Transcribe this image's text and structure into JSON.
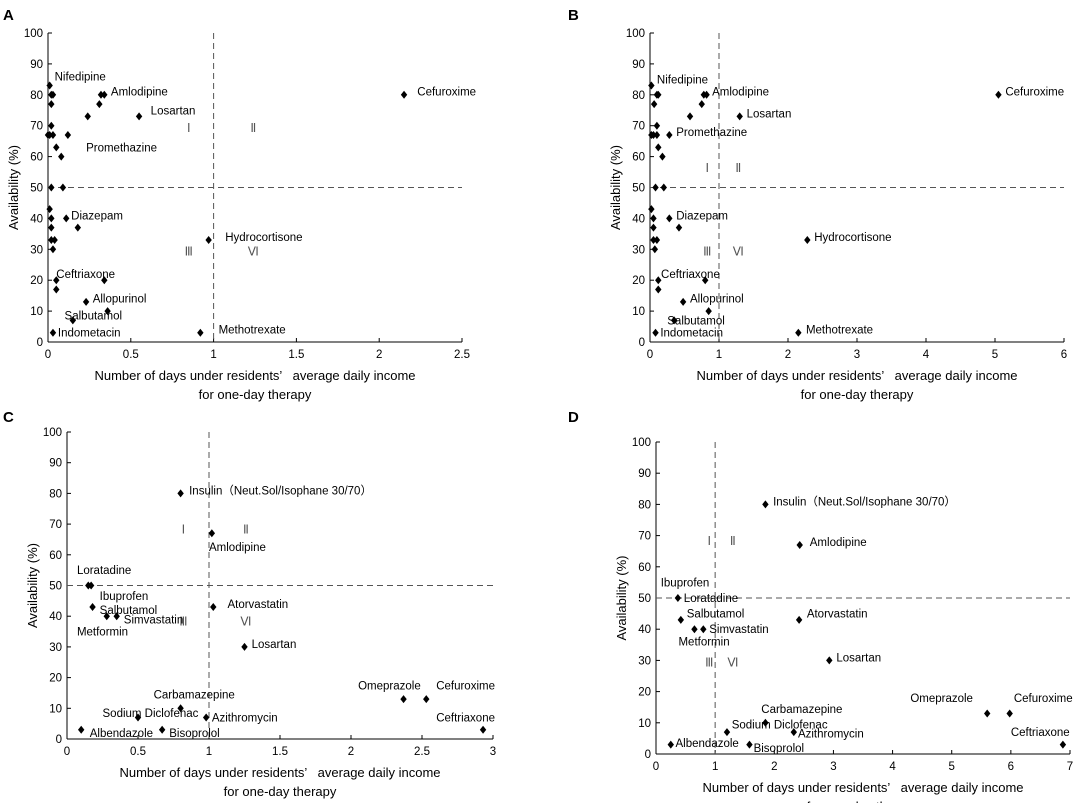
{
  "chart_data": [
    {
      "panel": "A",
      "type": "scatter",
      "xlabel": [
        "Number of days under residents’   average daily income",
        "for one-day therapy"
      ],
      "ylabel": "Availability (%)",
      "xlim": [
        0,
        2.5
      ],
      "ylim": [
        0,
        100
      ],
      "xticks": [
        0,
        0.5,
        1,
        1.5,
        2,
        2.5
      ],
      "xtick_labels": [
        "0",
        "0.5",
        "1",
        "1.5",
        "2",
        "2.5"
      ],
      "yticks": [
        0,
        10,
        20,
        30,
        40,
        50,
        60,
        70,
        80,
        90,
        100
      ],
      "threshold_x": 1,
      "threshold_y": 50,
      "quadrant_labels": [
        {
          "text": "Ⅰ",
          "x": 0.85,
          "y": 68
        },
        {
          "text": "Ⅱ",
          "x": 1.24,
          "y": 68
        },
        {
          "text": "Ⅲ",
          "x": 0.85,
          "y": 28
        },
        {
          "text": "Ⅵ",
          "x": 1.24,
          "y": 28
        }
      ],
      "points": [
        {
          "x": 0.01,
          "y": 83
        },
        {
          "x": 0.02,
          "y": 80
        },
        {
          "x": 0.03,
          "y": 80
        },
        {
          "x": 0.02,
          "y": 77
        },
        {
          "x": 0.02,
          "y": 70
        },
        {
          "x": 0.0,
          "y": 67
        },
        {
          "x": 0.01,
          "y": 67
        },
        {
          "x": 0.03,
          "y": 67
        },
        {
          "x": 0.12,
          "y": 67
        },
        {
          "x": 0.05,
          "y": 63
        },
        {
          "x": 0.08,
          "y": 60
        },
        {
          "x": 0.32,
          "y": 80
        },
        {
          "x": 0.34,
          "y": 80
        },
        {
          "x": 0.31,
          "y": 77
        },
        {
          "x": 0.24,
          "y": 73
        },
        {
          "x": 0.55,
          "y": 73
        },
        {
          "x": 2.15,
          "y": 80
        },
        {
          "x": 0.02,
          "y": 50
        },
        {
          "x": 0.09,
          "y": 50
        },
        {
          "x": 0.01,
          "y": 43
        },
        {
          "x": 0.02,
          "y": 40
        },
        {
          "x": 0.11,
          "y": 40
        },
        {
          "x": 0.18,
          "y": 37
        },
        {
          "x": 0.02,
          "y": 37
        },
        {
          "x": 0.02,
          "y": 33
        },
        {
          "x": 0.04,
          "y": 33
        },
        {
          "x": 0.03,
          "y": 30
        },
        {
          "x": 0.97,
          "y": 33
        },
        {
          "x": 0.05,
          "y": 20
        },
        {
          "x": 0.05,
          "y": 17
        },
        {
          "x": 0.34,
          "y": 20
        },
        {
          "x": 0.23,
          "y": 13
        },
        {
          "x": 0.36,
          "y": 10
        },
        {
          "x": 0.15,
          "y": 7
        },
        {
          "x": 0.03,
          "y": 3
        },
        {
          "x": 0.92,
          "y": 3
        }
      ],
      "labels": [
        {
          "text": "Nifedipine",
          "x": 0.04,
          "y": 86
        },
        {
          "text": "Amlodipine",
          "x": 0.38,
          "y": 81
        },
        {
          "text": "Cefuroxime",
          "x": 2.23,
          "y": 81
        },
        {
          "text": "Losartan",
          "x": 0.62,
          "y": 75
        },
        {
          "text": "Promethazine",
          "x": 0.23,
          "y": 63
        },
        {
          "text": "Diazepam",
          "x": 0.14,
          "y": 41
        },
        {
          "text": "Hydrocortisone",
          "x": 1.07,
          "y": 34
        },
        {
          "text": "Ceftriaxone",
          "x": 0.05,
          "y": 22
        },
        {
          "text": "Allopurinol",
          "x": 0.27,
          "y": 14
        },
        {
          "text": "Salbutamol",
          "x": 0.1,
          "y": 8.5
        },
        {
          "text": "Methotrexate",
          "x": 1.03,
          "y": 4
        },
        {
          "text": "Indometacin",
          "x": 0.06,
          "y": 3
        }
      ]
    },
    {
      "panel": "B",
      "type": "scatter",
      "xlabel": [
        "Number of days under residents’   average daily income",
        "for one-day therapy"
      ],
      "ylabel": "Availability (%)",
      "xlim": [
        0,
        6
      ],
      "ylim": [
        0,
        100
      ],
      "xticks": [
        0,
        1,
        2,
        3,
        4,
        5,
        6
      ],
      "xtick_labels": [
        "0",
        "1",
        "2",
        "3",
        "4",
        "5",
        "6"
      ],
      "yticks": [
        0,
        10,
        20,
        30,
        40,
        50,
        60,
        70,
        80,
        90,
        100
      ],
      "threshold_x": 1,
      "threshold_y": 50,
      "quadrant_labels": [
        {
          "text": "Ⅰ",
          "x": 0.83,
          "y": 55
        },
        {
          "text": "Ⅱ",
          "x": 1.28,
          "y": 55
        },
        {
          "text": "Ⅲ",
          "x": 0.83,
          "y": 28
        },
        {
          "text": "Ⅵ",
          "x": 1.28,
          "y": 28
        }
      ],
      "points": [
        {
          "x": 0.02,
          "y": 83
        },
        {
          "x": 0.1,
          "y": 80
        },
        {
          "x": 0.12,
          "y": 80
        },
        {
          "x": 0.06,
          "y": 77
        },
        {
          "x": 0.1,
          "y": 70
        },
        {
          "x": 0.02,
          "y": 67
        },
        {
          "x": 0.05,
          "y": 67
        },
        {
          "x": 0.1,
          "y": 67
        },
        {
          "x": 0.28,
          "y": 67
        },
        {
          "x": 0.12,
          "y": 63
        },
        {
          "x": 0.18,
          "y": 60
        },
        {
          "x": 0.78,
          "y": 80
        },
        {
          "x": 0.82,
          "y": 80
        },
        {
          "x": 0.75,
          "y": 77
        },
        {
          "x": 0.58,
          "y": 73
        },
        {
          "x": 1.3,
          "y": 73
        },
        {
          "x": 5.05,
          "y": 80
        },
        {
          "x": 0.08,
          "y": 50
        },
        {
          "x": 0.2,
          "y": 50
        },
        {
          "x": 0.02,
          "y": 43
        },
        {
          "x": 0.05,
          "y": 40
        },
        {
          "x": 0.28,
          "y": 40
        },
        {
          "x": 0.42,
          "y": 37
        },
        {
          "x": 0.05,
          "y": 37
        },
        {
          "x": 0.05,
          "y": 33
        },
        {
          "x": 0.1,
          "y": 33
        },
        {
          "x": 0.07,
          "y": 30
        },
        {
          "x": 2.28,
          "y": 33
        },
        {
          "x": 0.12,
          "y": 20
        },
        {
          "x": 0.12,
          "y": 17
        },
        {
          "x": 0.8,
          "y": 20
        },
        {
          "x": 0.48,
          "y": 13
        },
        {
          "x": 0.85,
          "y": 10
        },
        {
          "x": 0.35,
          "y": 7
        },
        {
          "x": 0.08,
          "y": 3
        },
        {
          "x": 2.15,
          "y": 3
        }
      ],
      "labels": [
        {
          "text": "Nifedipine",
          "x": 0.1,
          "y": 85
        },
        {
          "text": "Amlodipine",
          "x": 0.9,
          "y": 81
        },
        {
          "text": "Cefuroxime",
          "x": 5.15,
          "y": 81
        },
        {
          "text": "Losartan",
          "x": 1.4,
          "y": 74
        },
        {
          "text": "Promethazine",
          "x": 0.38,
          "y": 68
        },
        {
          "text": "Diazepam",
          "x": 0.38,
          "y": 41
        },
        {
          "text": "Hydrocortisone",
          "x": 2.38,
          "y": 34
        },
        {
          "text": "Ceftriaxone",
          "x": 0.16,
          "y": 22
        },
        {
          "text": "Allopurinol",
          "x": 0.58,
          "y": 14
        },
        {
          "text": "Salbutamol",
          "x": 0.25,
          "y": 7
        },
        {
          "text": "Methotrexate",
          "x": 2.26,
          "y": 4
        },
        {
          "text": "Indometacin",
          "x": 0.15,
          "y": 3
        }
      ]
    },
    {
      "panel": "C",
      "type": "scatter",
      "xlabel": [
        "Number of days under residents’   average daily income",
        "for one-day therapy"
      ],
      "ylabel": "Availability (%)",
      "xlim": [
        0,
        3
      ],
      "ylim": [
        0,
        100
      ],
      "xticks": [
        0,
        0.5,
        1,
        1.5,
        2,
        2.5,
        3
      ],
      "xtick_labels": [
        "0",
        "0.5",
        "1",
        "1.5",
        "2",
        "2.5",
        "3"
      ],
      "yticks": [
        0,
        10,
        20,
        30,
        40,
        50,
        60,
        70,
        80,
        90,
        100
      ],
      "threshold_x": 1,
      "threshold_y": 50,
      "quadrant_labels": [
        {
          "text": "Ⅰ",
          "x": 0.82,
          "y": 67
        },
        {
          "text": "Ⅱ",
          "x": 1.26,
          "y": 67
        },
        {
          "text": "Ⅲ",
          "x": 0.82,
          "y": 37
        },
        {
          "text": "Ⅵ",
          "x": 1.26,
          "y": 37
        }
      ],
      "points": [
        {
          "x": 0.8,
          "y": 80
        },
        {
          "x": 1.02,
          "y": 67
        },
        {
          "x": 0.15,
          "y": 50
        },
        {
          "x": 0.17,
          "y": 50
        },
        {
          "x": 0.18,
          "y": 43
        },
        {
          "x": 1.03,
          "y": 43
        },
        {
          "x": 0.28,
          "y": 40
        },
        {
          "x": 0.35,
          "y": 40
        },
        {
          "x": 1.25,
          "y": 30
        },
        {
          "x": 2.37,
          "y": 13
        },
        {
          "x": 2.53,
          "y": 13
        },
        {
          "x": 0.8,
          "y": 10
        },
        {
          "x": 0.5,
          "y": 7
        },
        {
          "x": 0.98,
          "y": 7
        },
        {
          "x": 0.1,
          "y": 3
        },
        {
          "x": 0.67,
          "y": 3
        },
        {
          "x": 2.93,
          "y": 3
        }
      ],
      "labels": [
        {
          "text": "Insulin（Neut.Sol/Isophane 30/70）",
          "x": 0.86,
          "y": 81
        },
        {
          "text": "Amlodipine",
          "x": 1.0,
          "y": 62.5
        },
        {
          "text": "Loratadine",
          "x": 0.07,
          "y": 55
        },
        {
          "text": "Ibuprofen",
          "x": 0.23,
          "y": 46.5
        },
        {
          "text": "Salbutamol",
          "x": 0.23,
          "y": 42
        },
        {
          "text": "Simvastatin",
          "x": 0.4,
          "y": 39
        },
        {
          "text": "Metformin",
          "x": 0.07,
          "y": 35
        },
        {
          "text": "Atorvastatin",
          "x": 1.13,
          "y": 44
        },
        {
          "text": "Losartan",
          "x": 1.3,
          "y": 31
        },
        {
          "text": "Omeprazole",
          "x": 2.05,
          "y": 17.5
        },
        {
          "text": "Cefuroxime",
          "x": 2.6,
          "y": 17.5
        },
        {
          "text": "Carbamazepine",
          "x": 0.61,
          "y": 14.5
        },
        {
          "text": "Sodium Diclofenac",
          "x": 0.25,
          "y": 8.5
        },
        {
          "text": "Azithromycin",
          "x": 1.02,
          "y": 7
        },
        {
          "text": "Albendazole",
          "x": 0.16,
          "y": 2
        },
        {
          "text": "Bisoprolol",
          "x": 0.72,
          "y": 2
        },
        {
          "text": "Ceftriaxone",
          "x": 2.6,
          "y": 7
        }
      ]
    },
    {
      "panel": "D",
      "type": "scatter",
      "xlabel": [
        "Number of days under residents’   average daily income",
        "for one-day therapy"
      ],
      "ylabel": "Availability (%)",
      "xlim": [
        0,
        7
      ],
      "ylim": [
        0,
        100
      ],
      "xticks": [
        0,
        1,
        2,
        3,
        4,
        5,
        6,
        7
      ],
      "xtick_labels": [
        "0",
        "1",
        "2",
        "3",
        "4",
        "5",
        "6",
        "7"
      ],
      "yticks": [
        0,
        10,
        20,
        30,
        40,
        50,
        60,
        70,
        80,
        90,
        100
      ],
      "threshold_x": 1,
      "threshold_y": 50,
      "quadrant_labels": [
        {
          "text": "Ⅰ",
          "x": 0.9,
          "y": 67
        },
        {
          "text": "Ⅱ",
          "x": 1.3,
          "y": 67
        },
        {
          "text": "Ⅲ",
          "x": 0.9,
          "y": 28
        },
        {
          "text": "Ⅵ",
          "x": 1.3,
          "y": 28
        }
      ],
      "points": [
        {
          "x": 1.85,
          "y": 80
        },
        {
          "x": 2.43,
          "y": 67
        },
        {
          "x": 0.37,
          "y": 50
        },
        {
          "x": 0.42,
          "y": 43
        },
        {
          "x": 2.42,
          "y": 43
        },
        {
          "x": 0.65,
          "y": 40
        },
        {
          "x": 0.8,
          "y": 40
        },
        {
          "x": 2.93,
          "y": 30
        },
        {
          "x": 5.6,
          "y": 13
        },
        {
          "x": 5.98,
          "y": 13
        },
        {
          "x": 1.85,
          "y": 10
        },
        {
          "x": 1.2,
          "y": 7
        },
        {
          "x": 2.33,
          "y": 7
        },
        {
          "x": 0.25,
          "y": 3
        },
        {
          "x": 1.58,
          "y": 3
        },
        {
          "x": 6.88,
          "y": 3
        }
      ],
      "labels": [
        {
          "text": "Insulin（Neut.Sol/Isophane 30/70）",
          "x": 1.98,
          "y": 81
        },
        {
          "text": "Amlodipine",
          "x": 2.6,
          "y": 68
        },
        {
          "text": "Ibuprofen",
          "x": 0.08,
          "y": 55
        },
        {
          "text": "Loratadine",
          "x": 0.47,
          "y": 50
        },
        {
          "text": "Salbutamol",
          "x": 0.52,
          "y": 45
        },
        {
          "text": "Simvastatin",
          "x": 0.9,
          "y": 40
        },
        {
          "text": "Metformin",
          "x": 0.38,
          "y": 36
        },
        {
          "text": "Atorvastatin",
          "x": 2.55,
          "y": 45
        },
        {
          "text": "Losartan",
          "x": 3.05,
          "y": 31
        },
        {
          "text": "Omeprazole",
          "x": 4.3,
          "y": 18
        },
        {
          "text": "Cefuroxime",
          "x": 6.05,
          "y": 18
        },
        {
          "text": "Carbamazepine",
          "x": 1.78,
          "y": 14.5
        },
        {
          "text": "Sodium Diclofenac",
          "x": 1.28,
          "y": 9.5
        },
        {
          "text": "Azithromycin",
          "x": 2.4,
          "y": 6.5
        },
        {
          "text": "Albendazole",
          "x": 0.33,
          "y": 3.5
        },
        {
          "text": "Bisoprolol",
          "x": 1.65,
          "y": 2
        },
        {
          "text": "Ceftriaxone",
          "x": 6.0,
          "y": 7
        }
      ]
    }
  ]
}
